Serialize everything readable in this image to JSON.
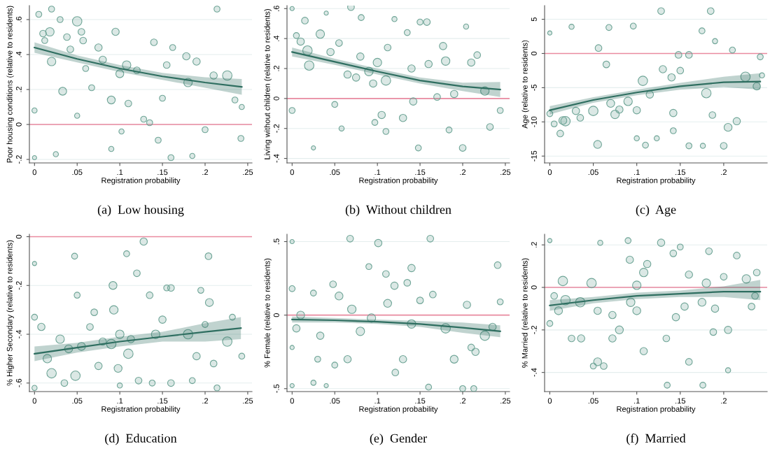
{
  "chart_data": [
    {
      "type": "bubble",
      "title": "(a)  Low housing",
      "xlabel": "Registration probability",
      "ylabel": "Poor housing conditions (relative to residents)",
      "xlim": [
        -0.006,
        0.255
      ],
      "ylim": [
        -0.22,
        0.68
      ],
      "xticks": [
        0,
        {
          "value": 0.05,
          "label": ".05"
        },
        {
          "value": 0.1,
          "label": ".1"
        },
        {
          "value": 0.15,
          "label": ".15"
        },
        {
          "value": 0.2,
          "label": ".2"
        },
        {
          "value": 0.25,
          "label": ".25"
        }
      ],
      "yticks": [
        {
          "value": -0.2,
          "label": "-.2"
        },
        0,
        {
          "value": 0.2,
          "label": ".2"
        },
        {
          "value": 0.4,
          "label": ".4"
        },
        {
          "value": 0.6,
          "label": ".6"
        }
      ],
      "grid": "y",
      "ref_lines": [
        {
          "axis": "y",
          "value": 0,
          "color": "#e98aa0"
        }
      ],
      "series": [
        {
          "color": "#6fa597",
          "x": [
            0,
            0.005,
            0.01,
            0.012,
            0.018,
            0.02,
            0.02,
            0.03,
            0.033,
            0.038,
            0.042,
            0.05,
            0.05,
            0.055,
            0.057,
            0.06,
            0.067,
            0.075,
            0.08,
            0.09,
            0.095,
            0.1,
            0.108,
            0.11,
            0.12,
            0.128,
            0.135,
            0.14,
            0.145,
            0.15,
            0.155,
            0.16,
            0.162,
            0.178,
            0.18,
            0.185,
            0.19,
            0.2,
            0.21,
            0.214,
            0.226,
            0.235,
            0.242,
            0.243,
            0,
            0.025,
            0.09,
            0.102
          ],
          "values": [
            0.08,
            0.63,
            0.52,
            0.48,
            0.53,
            0.36,
            0.66,
            0.6,
            0.19,
            0.5,
            0.43,
            0.59,
            0.05,
            0.53,
            0.48,
            0.32,
            0.21,
            0.44,
            0.37,
            0.14,
            0.53,
            0.29,
            0.34,
            0.12,
            0.31,
            0.03,
            0.01,
            0.47,
            -0.09,
            0.15,
            0.34,
            -0.19,
            0.44,
            0.39,
            0.24,
            -0.18,
            0.36,
            -0.03,
            0.28,
            0.66,
            0.28,
            0.14,
            -0.08,
            0.1,
            -0.19,
            -0.17,
            -0.14,
            -0.04
          ],
          "sizes": [
            0.3,
            0.4,
            0.5,
            0.4,
            0.8,
            0.8,
            0.4,
            0.4,
            0.7,
            0.5,
            0.5,
            1,
            0.3,
            0.5,
            0.5,
            0.4,
            0.4,
            0.6,
            0.6,
            0.7,
            0.6,
            0.7,
            0.8,
            0.5,
            0.5,
            0.4,
            0.4,
            0.5,
            0.4,
            0.4,
            0.5,
            0.4,
            0.4,
            0.6,
            0.8,
            0.3,
            0.6,
            0.4,
            0.6,
            0.4,
            1,
            0.4,
            0.4,
            0.3,
            0.2,
            0.3,
            0.3,
            0.3
          ]
        },
        {
          "type": "line",
          "color": "#2e6e60",
          "x": [
            0,
            0.05,
            0.1,
            0.15,
            0.2,
            0.243
          ],
          "values": [
            0.44,
            0.375,
            0.32,
            0.275,
            0.24,
            0.215
          ],
          "lower": [
            0.41,
            0.355,
            0.3,
            0.255,
            0.21,
            0.17
          ],
          "upper": [
            0.47,
            0.395,
            0.34,
            0.295,
            0.27,
            0.26
          ]
        }
      ]
    },
    {
      "type": "bubble",
      "title": "(b)  Without children",
      "xlabel": "Registration probability",
      "ylabel": "Living without children (relative to residents)",
      "xlim": [
        -0.006,
        0.255
      ],
      "ylim": [
        -0.43,
        0.62
      ],
      "xticks": [
        0,
        {
          "value": 0.05,
          "label": ".05"
        },
        {
          "value": 0.1,
          "label": ".1"
        },
        {
          "value": 0.15,
          "label": ".15"
        },
        {
          "value": 0.2,
          "label": ".2"
        },
        {
          "value": 0.25,
          "label": ".25"
        }
      ],
      "yticks": [
        {
          "value": -0.4,
          "label": "-.4"
        },
        {
          "value": -0.2,
          "label": "-.2"
        },
        0,
        {
          "value": 0.2,
          "label": ".2"
        },
        {
          "value": 0.4,
          "label": ".4"
        },
        {
          "value": 0.6,
          "label": ".6"
        }
      ],
      "grid": "y",
      "ref_lines": [
        {
          "axis": "y",
          "value": 0,
          "color": "#e98aa0"
        }
      ],
      "series": [
        {
          "color": "#6fa597",
          "x": [
            0,
            0,
            0.005,
            0.01,
            0.015,
            0.018,
            0.02,
            0.025,
            0.033,
            0.04,
            0.045,
            0.05,
            0.055,
            0.058,
            0.065,
            0.069,
            0.075,
            0.08,
            0.081,
            0.09,
            0.095,
            0.097,
            0.1,
            0.105,
            0.11,
            0.11,
            0.112,
            0.12,
            0.13,
            0.135,
            0.14,
            0.142,
            0.148,
            0.15,
            0.158,
            0.16,
            0.17,
            0.177,
            0.18,
            0.184,
            0.19,
            0.2,
            0.204,
            0.21,
            0.217,
            0.226,
            0.232,
            0.244
          ],
          "values": [
            0.6,
            -0.08,
            0.42,
            0.38,
            0.52,
            0.32,
            0.22,
            -0.33,
            0.43,
            0.57,
            0.31,
            -0.04,
            0.37,
            -0.2,
            0.16,
            0.61,
            0.14,
            0.28,
            0.54,
            0.18,
            0.1,
            -0.16,
            0.24,
            -0.11,
            0.12,
            -0.22,
            0.34,
            0.53,
            -0.13,
            0.44,
            0.2,
            -0.02,
            -0.33,
            0.51,
            0.51,
            0.23,
            0.01,
            0.35,
            0.25,
            -0.21,
            0.03,
            -0.33,
            0.48,
            0.24,
            0.29,
            0.05,
            -0.19,
            -0.08
          ],
          "sizes": [
            0.2,
            0.4,
            0.4,
            0.6,
            0.5,
            1,
            1,
            0.2,
            0.8,
            0.2,
            0.6,
            0.4,
            0.5,
            0.3,
            0.6,
            0.5,
            0.6,
            0.6,
            0.4,
            0.8,
            0.6,
            0.4,
            0.8,
            0.6,
            1,
            0.4,
            0.5,
            0.3,
            0.6,
            0.4,
            0.6,
            0.6,
            0.4,
            0.4,
            0.5,
            0.6,
            0.5,
            0.6,
            0.8,
            0.4,
            0.6,
            0.5,
            0.3,
            0.6,
            0.5,
            0.8,
            0.5,
            0.4
          ]
        },
        {
          "type": "line",
          "color": "#2e6e60",
          "x": [
            0,
            0.05,
            0.1,
            0.15,
            0.2,
            0.244
          ],
          "values": [
            0.31,
            0.245,
            0.18,
            0.12,
            0.08,
            0.06
          ],
          "lower": [
            0.28,
            0.225,
            0.16,
            0.1,
            0.05,
            0.01
          ],
          "upper": [
            0.34,
            0.265,
            0.2,
            0.14,
            0.105,
            0.11
          ]
        }
      ]
    },
    {
      "type": "bubble",
      "title": "(c)  Age",
      "xlabel": "Registration probability",
      "ylabel": "Age (relative to residents)",
      "xlim": [
        -0.006,
        0.25
      ],
      "ylim": [
        -16,
        7
      ],
      "xticks": [
        0,
        {
          "value": 0.05,
          "label": ".05"
        },
        {
          "value": 0.1,
          "label": ".1"
        },
        {
          "value": 0.15,
          "label": ".15"
        },
        {
          "value": 0.2,
          "label": ".2"
        }
      ],
      "yticks": [
        {
          "value": -15,
          "label": "-15"
        },
        {
          "value": -10,
          "label": "-10"
        },
        {
          "value": -5,
          "label": "-5"
        },
        0,
        5
      ],
      "grid": "y",
      "ref_lines": [
        {
          "axis": "y",
          "value": 0,
          "color": "#e98aa0"
        }
      ],
      "series": [
        {
          "color": "#6fa597",
          "x": [
            0,
            0,
            0.005,
            0.012,
            0.015,
            0.018,
            0.025,
            0.03,
            0.035,
            0.05,
            0.055,
            0.056,
            0.065,
            0.068,
            0.07,
            0.075,
            0.08,
            0.09,
            0.096,
            0.1,
            0.1,
            0.107,
            0.11,
            0.115,
            0.123,
            0.128,
            0.13,
            0.14,
            0.142,
            0.142,
            0.148,
            0.15,
            0.16,
            0.16,
            0.175,
            0.176,
            0.18,
            0.185,
            0.187,
            0.19,
            0.2,
            0.205,
            0.21,
            0.215,
            0.225,
            0.238,
            0.242,
            0.244
          ],
          "values": [
            3,
            -8.8,
            -10.3,
            -11.7,
            -9.8,
            -9.9,
            3.9,
            -8.4,
            -9.4,
            -8.4,
            -13.3,
            0.8,
            -1.6,
            3.8,
            -7.3,
            -8.9,
            -8.2,
            -7,
            4,
            -8.3,
            -12.4,
            -4,
            -13.4,
            -6,
            -12.4,
            6.2,
            -2.3,
            -3.5,
            -8.7,
            -11.3,
            -0.2,
            -2.5,
            -13.5,
            -0.2,
            3.3,
            -13.5,
            -5.8,
            6.2,
            -9,
            1.8,
            -13.5,
            -10.8,
            0.5,
            -9.9,
            -3.4,
            -4.8,
            -0.5,
            -3.2
          ],
          "sizes": [
            0.2,
            0.4,
            0.4,
            0.5,
            0.7,
            1,
            0.3,
            0.6,
            0.5,
            1,
            0.7,
            0.5,
            0.5,
            0.4,
            0.7,
            0.8,
            0.6,
            0.8,
            0.4,
            0.6,
            0.3,
            1,
            0.4,
            0.6,
            0.3,
            0.5,
            0.6,
            0.6,
            0.6,
            0.4,
            0.5,
            0.5,
            0.4,
            0.5,
            0.4,
            0.3,
            1,
            0.5,
            0.5,
            0.3,
            0.5,
            0.7,
            0.4,
            0.6,
            1,
            0.6,
            0.4,
            0.3
          ]
        },
        {
          "type": "line",
          "color": "#2e6e60",
          "x": [
            0,
            0.05,
            0.1,
            0.15,
            0.2,
            0.242
          ],
          "values": [
            -8.3,
            -6.8,
            -5.7,
            -4.8,
            -4.2,
            -4.1
          ],
          "lower": [
            -8.9,
            -7.2,
            -6.1,
            -5.3,
            -4.9,
            -5.3
          ],
          "upper": [
            -7.7,
            -6.4,
            -5.3,
            -4.3,
            -3.4,
            -2.9
          ]
        }
      ]
    },
    {
      "type": "bubble",
      "title": "(d)  Education",
      "xlabel": "Registration probability",
      "ylabel": "% Higher Secondary (relative to residents)",
      "xlim": [
        -0.006,
        0.255
      ],
      "ylim": [
        -0.635,
        0.01
      ],
      "xticks": [
        0,
        {
          "value": 0.05,
          "label": ".05"
        },
        {
          "value": 0.1,
          "label": ".1"
        },
        {
          "value": 0.15,
          "label": ".15"
        },
        {
          "value": 0.2,
          "label": ".2"
        },
        {
          "value": 0.25,
          "label": ".25"
        }
      ],
      "yticks": [
        {
          "value": -0.6,
          "label": "-.6"
        },
        {
          "value": -0.4,
          "label": "-.4"
        },
        {
          "value": -0.2,
          "label": "-.2"
        },
        0
      ],
      "grid": "y",
      "ref_lines": [
        {
          "axis": "y",
          "value": 0,
          "color": "#e98aa0"
        }
      ],
      "series": [
        {
          "color": "#6fa597",
          "x": [
            0,
            0,
            0,
            0.008,
            0.015,
            0.02,
            0.03,
            0.035,
            0.04,
            0.047,
            0.048,
            0.05,
            0.055,
            0.065,
            0.07,
            0.075,
            0.08,
            0.09,
            0.092,
            0.093,
            0.098,
            0.1,
            0.1,
            0.108,
            0.11,
            0.113,
            0.12,
            0.122,
            0.128,
            0.135,
            0.138,
            0.142,
            0.15,
            0.155,
            0.16,
            0.16,
            0.18,
            0.185,
            0.19,
            0.195,
            0.2,
            0.204,
            0.205,
            0.21,
            0.214,
            0.226,
            0.232,
            0.243
          ],
          "values": [
            -0.11,
            -0.33,
            -0.62,
            -0.37,
            -0.5,
            -0.56,
            -0.42,
            -0.6,
            -0.46,
            -0.08,
            -0.57,
            -0.24,
            -0.45,
            -0.37,
            -0.31,
            -0.53,
            -0.43,
            -0.44,
            -0.2,
            -0.3,
            -0.54,
            -0.61,
            -0.4,
            -0.07,
            -0.48,
            -0.42,
            -0.15,
            -0.59,
            -0.02,
            -0.24,
            -0.6,
            -0.4,
            -0.34,
            -0.21,
            -0.21,
            -0.6,
            -0.4,
            -0.59,
            -0.49,
            -0.22,
            -0.36,
            -0.08,
            -0.27,
            -0.52,
            -0.62,
            -0.43,
            -0.33,
            -0.49
          ],
          "sizes": [
            0.2,
            0.4,
            0.3,
            0.6,
            0.8,
            1,
            0.8,
            0.5,
            0.7,
            0.4,
            1,
            0.4,
            0.7,
            0.5,
            0.5,
            0.6,
            0.6,
            1,
            0.7,
            0.8,
            0.7,
            0.3,
            0.8,
            0.4,
            1,
            0.6,
            0.5,
            0.5,
            0.6,
            0.5,
            0.4,
            0.8,
            0.6,
            0.4,
            0.5,
            0.5,
            1,
            0.4,
            0.6,
            0.4,
            0.4,
            0.5,
            0.7,
            0.5,
            0.4,
            1,
            0.4,
            0.4
          ]
        },
        {
          "type": "line",
          "color": "#2e6e60",
          "x": [
            0,
            0.05,
            0.1,
            0.15,
            0.2,
            0.242
          ],
          "values": [
            -0.48,
            -0.455,
            -0.43,
            -0.41,
            -0.39,
            -0.375
          ],
          "lower": [
            -0.51,
            -0.475,
            -0.45,
            -0.43,
            -0.43,
            -0.42
          ],
          "upper": [
            -0.45,
            -0.435,
            -0.41,
            -0.39,
            -0.355,
            -0.33
          ]
        }
      ]
    },
    {
      "type": "bubble",
      "title": "(e)  Gender",
      "xlabel": "Registration probability",
      "ylabel": "% Female (relative to residents)",
      "xlim": [
        -0.006,
        0.255
      ],
      "ylim": [
        -0.52,
        0.55
      ],
      "xticks": [
        0,
        {
          "value": 0.05,
          "label": ".05"
        },
        {
          "value": 0.1,
          "label": ".1"
        },
        {
          "value": 0.15,
          "label": ".15"
        },
        {
          "value": 0.2,
          "label": ".2"
        },
        {
          "value": 0.25,
          "label": ".25"
        }
      ],
      "yticks": [
        {
          "value": -0.5,
          "label": "-.5"
        },
        0,
        {
          "value": 0.5,
          "label": ".5"
        }
      ],
      "grid": "y",
      "ref_lines": [
        {
          "axis": "y",
          "value": 0,
          "color": "#e98aa0"
        }
      ],
      "series": [
        {
          "color": "#6fa597",
          "x": [
            0,
            0,
            0,
            0,
            0.005,
            0.01,
            0.025,
            0.025,
            0.03,
            0.033,
            0.04,
            0.048,
            0.05,
            0.055,
            0.065,
            0.068,
            0.07,
            0.08,
            0.09,
            0.093,
            0.101,
            0.11,
            0.112,
            0.12,
            0.121,
            0.13,
            0.135,
            0.14,
            0.14,
            0.15,
            0.16,
            0.162,
            0.165,
            0.18,
            0.19,
            0.2,
            0.205,
            0.21,
            0.213,
            0.215,
            0.226,
            0.235,
            0.241,
            0.244
          ],
          "values": [
            0.5,
            0.18,
            -0.22,
            -0.48,
            -0.09,
            0,
            0.15,
            -0.46,
            -0.3,
            -0.14,
            -0.48,
            0.21,
            -0.34,
            0.13,
            -0.3,
            0.52,
            0.04,
            -0.11,
            0.33,
            -0.02,
            0.49,
            0.28,
            0.08,
            0.2,
            -0.39,
            -0.3,
            0.22,
            0.32,
            -0.06,
            0.1,
            -0.49,
            0.52,
            0.14,
            -0.09,
            -0.3,
            -0.5,
            0.07,
            -0.22,
            -0.5,
            -0.25,
            -0.14,
            -0.08,
            0.34,
            0.09
          ],
          "sizes": [
            0.2,
            0.4,
            0.2,
            0.2,
            0.6,
            0.7,
            0.4,
            0.3,
            0.4,
            0.6,
            0.2,
            0.5,
            0.4,
            0.7,
            0.6,
            0.5,
            0.8,
            0.8,
            0.4,
            0.8,
            0.6,
            0.5,
            0.7,
            0.6,
            0.5,
            0.6,
            0.5,
            0.6,
            0.8,
            0.5,
            0.4,
            0.5,
            0.5,
            1,
            0.7,
            0.4,
            0.6,
            0.5,
            0.4,
            0.6,
            1,
            0.6,
            0.5,
            0.4
          ]
        },
        {
          "type": "line",
          "color": "#2e6e60",
          "x": [
            0,
            0.05,
            0.1,
            0.15,
            0.2,
            0.244
          ],
          "values": [
            -0.03,
            -0.035,
            -0.045,
            -0.06,
            -0.085,
            -0.11
          ],
          "lower": [
            -0.05,
            -0.05,
            -0.06,
            -0.08,
            -0.12,
            -0.15
          ],
          "upper": [
            -0.01,
            -0.02,
            -0.03,
            -0.04,
            -0.05,
            -0.07
          ]
        }
      ]
    },
    {
      "type": "bubble",
      "title": "(f)  Married",
      "xlabel": "Registration probability",
      "ylabel": "% Married (relative to residents)",
      "xlim": [
        -0.006,
        0.25
      ],
      "ylim": [
        -0.49,
        0.25
      ],
      "xticks": [
        0,
        {
          "value": 0.05,
          "label": ".05"
        },
        {
          "value": 0.1,
          "label": ".1"
        },
        {
          "value": 0.15,
          "label": ".15"
        },
        {
          "value": 0.2,
          "label": ".2"
        }
      ],
      "yticks": [
        {
          "value": -0.4,
          "label": "-.4"
        },
        {
          "value": -0.2,
          "label": "-.2"
        },
        0,
        {
          "value": 0.2,
          "label": ".2"
        }
      ],
      "grid": "y",
      "ref_lines": [
        {
          "axis": "y",
          "value": 0,
          "color": "#e98aa0"
        }
      ],
      "series": [
        {
          "color": "#6fa597",
          "x": [
            0,
            0,
            0.005,
            0.01,
            0.015,
            0.018,
            0.025,
            0.035,
            0.036,
            0.048,
            0.05,
            0.055,
            0.055,
            0.058,
            0.062,
            0.072,
            0.072,
            0.08,
            0.09,
            0.092,
            0.093,
            0.1,
            0.1,
            0.108,
            0.108,
            0.112,
            0.128,
            0.134,
            0.135,
            0.142,
            0.145,
            0.15,
            0.155,
            0.16,
            0.16,
            0.175,
            0.176,
            0.18,
            0.183,
            0.188,
            0.19,
            0.2,
            0.205,
            0.205,
            0.215,
            0.226,
            0.232,
            0.236,
            0.238
          ],
          "values": [
            0.22,
            -0.17,
            -0.04,
            -0.11,
            0.03,
            -0.06,
            -0.24,
            -0.07,
            -0.24,
            0.02,
            -0.37,
            -0.11,
            -0.35,
            0.21,
            -0.37,
            -0.13,
            -0.24,
            -0.2,
            0.22,
            0.13,
            -0.07,
            0.01,
            -0.11,
            0.07,
            -0.3,
            0.11,
            0.21,
            -0.24,
            -0.46,
            0.16,
            -0.14,
            0.19,
            -0.09,
            -0.35,
            0.06,
            -0.07,
            -0.46,
            0.02,
            0.17,
            -0.21,
            -0.1,
            0.05,
            -0.2,
            -0.39,
            0.15,
            0.04,
            -0.09,
            -0.04,
            0.07
          ],
          "sizes": [
            0.2,
            0.4,
            0.5,
            0.7,
            1,
            1,
            0.5,
            1,
            0.6,
            1,
            0.4,
            0.6,
            0.7,
            0.3,
            0.5,
            0.6,
            0.6,
            0.7,
            0.4,
            0.6,
            0.8,
            0.8,
            0.7,
            0.8,
            0.6,
            0.6,
            0.6,
            0.5,
            0.4,
            0.5,
            0.6,
            0.4,
            0.6,
            0.5,
            0.6,
            0.7,
            0.4,
            0.8,
            0.5,
            0.5,
            0.6,
            0.5,
            0.6,
            0.3,
            0.5,
            0.8,
            0.5,
            0.5,
            0.5
          ]
        },
        {
          "type": "line",
          "color": "#2e6e60",
          "x": [
            0,
            0.05,
            0.1,
            0.15,
            0.2,
            0.242
          ],
          "values": [
            -0.085,
            -0.06,
            -0.04,
            -0.03,
            -0.02,
            -0.02
          ],
          "lower": [
            -0.11,
            -0.075,
            -0.055,
            -0.045,
            -0.045,
            -0.06
          ],
          "upper": [
            -0.06,
            -0.045,
            -0.025,
            -0.015,
            0.005,
            0.035
          ]
        }
      ]
    }
  ]
}
